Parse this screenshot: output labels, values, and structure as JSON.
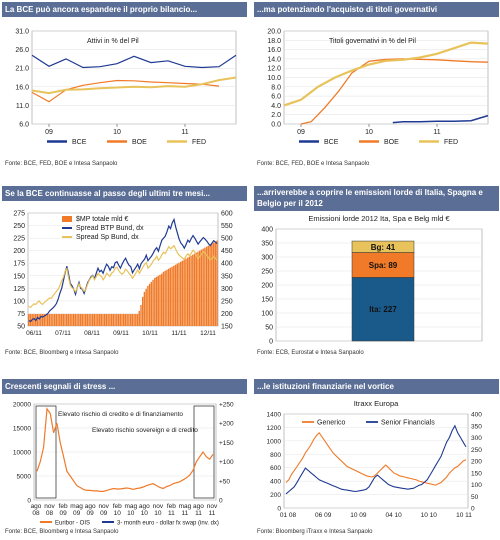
{
  "colors": {
    "header_bg": "#5b6e95",
    "blue": "#1f3a93",
    "orange": "#f07a28",
    "gold": "#e8c25a",
    "grid": "#dddddd"
  },
  "chart_data": [
    {
      "type": "line",
      "header": "La BCE può ancora espandere il proprio bilancio...",
      "annotation": "Attivi in % del Pil",
      "source": "Fonte: BCE, FED, BOE e Intesa Sanpaolo",
      "y_ticks": [
        "31.0",
        "26.0",
        "21.0",
        "16.0",
        "11.0",
        "6.0"
      ],
      "x_ticks": [
        "09",
        "10",
        "11"
      ],
      "ylim": [
        6,
        31
      ],
      "xlim": [
        2008.75,
        2011.75
      ],
      "x_tick_values": [
        2009,
        2010,
        2011
      ],
      "series": [
        {
          "name": "BCE",
          "color": "#1f3a93",
          "x": [
            2008.75,
            2009.0,
            2009.25,
            2009.5,
            2009.75,
            2010.0,
            2010.25,
            2010.5,
            2010.75,
            2011.0,
            2011.25,
            2011.5,
            2011.75
          ],
          "values": [
            24.5,
            21.5,
            23.5,
            21.2,
            21.4,
            22.2,
            24.2,
            22.5,
            23.0,
            21.5,
            21.2,
            21.4,
            24.5
          ]
        },
        {
          "name": "BOE",
          "color": "#f07a28",
          "x": [
            2008.75,
            2009.0,
            2009.25,
            2009.5,
            2009.75,
            2010.0,
            2010.25,
            2010.5,
            2010.75,
            2011.0,
            2011.25,
            2011.5
          ],
          "values": [
            14.5,
            12.0,
            15.2,
            16.4,
            17.1,
            17.7,
            17.6,
            17.3,
            17.1,
            16.9,
            16.7,
            16.2
          ]
        },
        {
          "name": "FED",
          "color": "#e8c25a",
          "x": [
            2008.75,
            2009.0,
            2009.25,
            2009.5,
            2009.75,
            2010.0,
            2010.25,
            2010.5,
            2010.75,
            2011.0,
            2011.25,
            2011.5,
            2011.75
          ],
          "values": [
            15.0,
            14.3,
            15.2,
            15.3,
            15.6,
            15.8,
            16.0,
            15.9,
            16.2,
            16.0,
            16.7,
            17.8,
            18.5
          ]
        }
      ]
    },
    {
      "type": "line",
      "header": "...ma potenziando l'acquisto di titoli governativi",
      "annotation": "Titoli governativi in % del Pil",
      "source": "Fonte: BCE, FED, BOE e Intesa Sanpaolo",
      "y_ticks": [
        "20.0",
        "18.0",
        "16.0",
        "14.0",
        "12.0",
        "10.0",
        "8.0",
        "6.0",
        "4.0",
        "2.0",
        "0.0"
      ],
      "x_ticks": [
        "09",
        "10",
        "11"
      ],
      "ylim": [
        0,
        20
      ],
      "xlim": [
        2008.75,
        2011.75
      ],
      "x_tick_values": [
        2009,
        2010,
        2011
      ],
      "series": [
        {
          "name": "BCE",
          "color": "#1f3a93",
          "x": [
            2010.35,
            2010.5,
            2010.75,
            2011.0,
            2011.25,
            2011.5,
            2011.75
          ],
          "values": [
            0.3,
            0.5,
            0.5,
            0.6,
            0.6,
            0.7,
            1.8
          ]
        },
        {
          "name": "BOE",
          "color": "#f07a28",
          "x": [
            2009.0,
            2009.15,
            2009.35,
            2009.55,
            2009.75,
            2010.0,
            2010.25,
            2010.5,
            2010.75,
            2011.0,
            2011.25,
            2011.5,
            2011.75
          ],
          "values": [
            0.0,
            0.5,
            3.5,
            7.0,
            11.0,
            13.5,
            13.9,
            14.0,
            13.9,
            13.8,
            13.6,
            13.4,
            13.3
          ]
        },
        {
          "name": "FED",
          "color": "#e8c25a",
          "x": [
            2008.75,
            2009.0,
            2009.25,
            2009.5,
            2009.75,
            2010.0,
            2010.25,
            2010.5,
            2010.75,
            2011.0,
            2011.25,
            2011.5,
            2011.75
          ],
          "values": [
            4.0,
            5.2,
            8.0,
            10.0,
            11.5,
            12.8,
            13.6,
            13.8,
            14.3,
            15.1,
            16.3,
            17.5,
            17.3
          ]
        }
      ]
    },
    {
      "type": "bar+line",
      "header": "Se la BCE continuasse al passo degli ultimi tre mesi...",
      "source": "Fonte: BCE, Bloomberg e Intesa Sanpaolo",
      "y_ticks_left": [
        "275",
        "250",
        "225",
        "200",
        "175",
        "150",
        "125",
        "100",
        "75",
        "50"
      ],
      "y_ticks_right": [
        "600",
        "550",
        "500",
        "450",
        "400",
        "350",
        "300",
        "250",
        "200",
        "150"
      ],
      "x_ticks": [
        "06/11",
        "07/11",
        "08/11",
        "09/11",
        "10/11",
        "11/11",
        "12/11"
      ],
      "ylim_left": [
        50,
        275
      ],
      "ylim_right": [
        150,
        600
      ],
      "legend": [
        "$MP totale mld €",
        "Spread BTP Bund, dx",
        "Spread Sp Bund, dx"
      ],
      "bars": {
        "name": "$MP totale mld €",
        "color": "#f07a28",
        "values": [
          74,
          74,
          74,
          74,
          74,
          74,
          74,
          74,
          74,
          74,
          74,
          74,
          74,
          74,
          74,
          74,
          74,
          74,
          74,
          74,
          74,
          74,
          74,
          74,
          74,
          74,
          74,
          74,
          74,
          74,
          74,
          74,
          74,
          74,
          74,
          74,
          74,
          74,
          74,
          74,
          74,
          74,
          74,
          74,
          74,
          74,
          74,
          74,
          74,
          74,
          74,
          74,
          74,
          74,
          74,
          74,
          74,
          74,
          74,
          74,
          74,
          74,
          74,
          74,
          80,
          92,
          108,
          118,
          124,
          130,
          134,
          138,
          142,
          146,
          148,
          150,
          152,
          154,
          158,
          160,
          162,
          164,
          166,
          168,
          170,
          172,
          174,
          176,
          178,
          180,
          182,
          184,
          186,
          188,
          190,
          192,
          194,
          196,
          198,
          200,
          202,
          204,
          206,
          208,
          210,
          212,
          214,
          216,
          218,
          220
        ]
      },
      "series": [
        {
          "name": "Spread BTP Bund, dx",
          "color": "#1f3a93",
          "values": [
            172,
            168,
            176,
            180,
            172,
            184,
            178,
            188,
            186,
            190,
            194,
            200,
            210,
            216,
            222,
            230,
            240,
            258,
            282,
            300,
            330,
            362,
            388,
            356,
            320,
            310,
            296,
            276,
            302,
            324,
            300,
            296,
            280,
            300,
            322,
            334,
            346,
            352,
            338,
            360,
            380,
            366,
            372,
            360,
            380,
            396,
            388,
            372,
            386,
            382,
            402,
            406,
            392,
            380,
            396,
            410,
            420,
            404,
            392,
            386,
            362,
            374,
            384,
            396,
            378,
            398,
            408,
            416,
            432,
            410,
            420,
            428,
            440,
            454,
            462,
            448,
            470,
            492,
            500,
            508,
            526,
            548,
            538,
            560,
            574,
            544,
            520,
            496,
            480,
            472,
            460,
            474,
            492,
            484,
            498,
            510,
            500,
            488,
            476,
            486,
            494,
            502,
            496,
            488,
            478,
            470,
            480,
            490,
            484,
            478
          ]
        },
        {
          "name": "Spread Sp Bund, dx",
          "color": "#e8c25a",
          "values": [
            228,
            224,
            232,
            238,
            236,
            244,
            250,
            240,
            236,
            244,
            250,
            256,
            262,
            260,
            270,
            280,
            288,
            296,
            312,
            330,
            344,
            368,
            378,
            342,
            312,
            302,
            296,
            286,
            300,
            318,
            306,
            298,
            288,
            296,
            316,
            332,
            342,
            350,
            334,
            346,
            360,
            352,
            348,
            334,
            344,
            360,
            354,
            348,
            362,
            366,
            380,
            384,
            372,
            362,
            356,
            364,
            376,
            370,
            360,
            352,
            340,
            350,
            362,
            374,
            360,
            372,
            384,
            396,
            402,
            380,
            388,
            396,
            410,
            416,
            428,
            412,
            420,
            434,
            444,
            438,
            452,
            466,
            458,
            462,
            470,
            456,
            442,
            432,
            426,
            420,
            416,
            428,
            438,
            430,
            440,
            452,
            446,
            430,
            420,
            428,
            436,
            446,
            440,
            432,
            422,
            414,
            420,
            428,
            420,
            412
          ]
        }
      ]
    },
    {
      "type": "stacked-bar",
      "header": "...arriverebbe a coprire le emissioni lorde di Italia, Spagna e Belgio per il 2012",
      "title": "Emissioni lorde 2012 Ita, Spa e Belg mld €",
      "source": "Fonte: ECB, Eurostat e Intesa Sanpaolo",
      "y_ticks": [
        "400",
        "350",
        "300",
        "250",
        "200",
        "150",
        "100",
        "50",
        "0"
      ],
      "ylim": [
        0,
        400
      ],
      "stack": [
        {
          "label": "Ita: 227",
          "value": 227,
          "color": "#1a5a8a"
        },
        {
          "label": "Spa: 89",
          "value": 89,
          "color": "#f07a28"
        },
        {
          "label": "Bg: 41",
          "value": 41,
          "color": "#e8c25a"
        }
      ]
    },
    {
      "type": "line",
      "header": "Crescenti segnali di stress ...",
      "annotations": [
        "Elevato rischio di credito e di finanziamento",
        "Elevato rischio sovereign e di credito"
      ],
      "source": "Fonte: BCE, Bloomberg e Intesa Sanpaolo",
      "y_ticks_left": [
        "20000",
        "15000",
        "10000",
        "5000",
        "0"
      ],
      "y_ticks_right": [
        "+250",
        "+200",
        "+150",
        "+100",
        "+50",
        "0"
      ],
      "x_ticks_top": [
        "ago",
        "nov",
        "feb",
        "mag",
        "ago",
        "nov",
        "feb",
        "mag",
        "ago",
        "nov",
        "feb",
        "mag",
        "ago",
        "nov"
      ],
      "x_ticks_bottom": [
        "08",
        "08",
        "09",
        "09",
        "09",
        "09",
        "10",
        "10",
        "10",
        "10",
        "11",
        "11",
        "11",
        "11"
      ],
      "ylim_left": [
        0,
        20000
      ],
      "ylim_right": [
        0,
        250
      ],
      "legend": [
        "Euribor - OIS",
        "3- month euro - dollar fx swap (inv. dx)"
      ],
      "series": [
        {
          "name": "Euribor - OIS",
          "color": "#f07a28",
          "values": [
            6000,
            8000,
            11000,
            19000,
            18000,
            14000,
            16000,
            12000,
            9000,
            6000,
            5000,
            4000,
            3000,
            2600,
            2200,
            2000,
            2000,
            1900,
            1900,
            1800,
            1800,
            2000,
            2200,
            2400,
            2300,
            2300,
            2400,
            2500,
            2400,
            2200,
            2400,
            2500,
            2700,
            3000,
            3200,
            3400,
            3000,
            2600,
            2400,
            2800,
            3000,
            3400,
            3600,
            3800,
            4200,
            4600,
            5200,
            6200,
            8000,
            9000,
            10000,
            9000,
            8500,
            9500
          ]
        }
      ]
    },
    {
      "type": "line",
      "header": "...le istituzioni finanziarie nel vortice",
      "title": "Itraxx Europa",
      "source": "Fonte: Bloomberg iTraxx e Intesa Sanpaolo",
      "y_ticks_left": [
        "1400",
        "1200",
        "1000",
        "800",
        "600",
        "400",
        "200",
        "0"
      ],
      "y_ticks_right": [
        "400",
        "350",
        "300",
        "250",
        "200",
        "150",
        "100",
        "50",
        "0"
      ],
      "x_ticks": [
        "01 08",
        "06 09",
        "10 09",
        "04 10",
        "10 10",
        "10 11"
      ],
      "ylim_left": [
        0,
        1400
      ],
      "ylim_right": [
        0,
        400
      ],
      "legend": [
        "Generico",
        "Senior Financials"
      ],
      "series": [
        {
          "name": "Generico",
          "color": "#f07a28",
          "values": [
            380,
            420,
            500,
            560,
            620,
            680,
            740,
            820,
            880,
            940,
            1020,
            1080,
            1120,
            1060,
            1000,
            940,
            880,
            820,
            780,
            740,
            700,
            660,
            620,
            600,
            580,
            560,
            540,
            520,
            500,
            480,
            470,
            460,
            480,
            520,
            560,
            600,
            640,
            600,
            560,
            520,
            500,
            480,
            470,
            460,
            450,
            440,
            430,
            420,
            400,
            390,
            380,
            370,
            360,
            350,
            340,
            360,
            380,
            420,
            460,
            520,
            560,
            600,
            620,
            660,
            700,
            720
          ]
        },
        {
          "name": "Senior Financials",
          "color": "#1f3a93",
          "values": [
            60,
            70,
            80,
            90,
            110,
            130,
            150,
            170,
            160,
            150,
            140,
            130,
            120,
            115,
            110,
            105,
            100,
            95,
            90,
            85,
            80,
            78,
            76,
            74,
            72,
            70,
            72,
            74,
            76,
            80,
            90,
            110,
            130,
            140,
            130,
            120,
            110,
            100,
            95,
            90,
            88,
            86,
            84,
            82,
            80,
            82,
            84,
            90,
            96,
            100,
            110,
            120,
            140,
            160,
            180,
            200,
            220,
            250,
            280,
            300,
            330,
            350,
            320,
            300,
            280,
            260
          ]
        }
      ]
    }
  ]
}
